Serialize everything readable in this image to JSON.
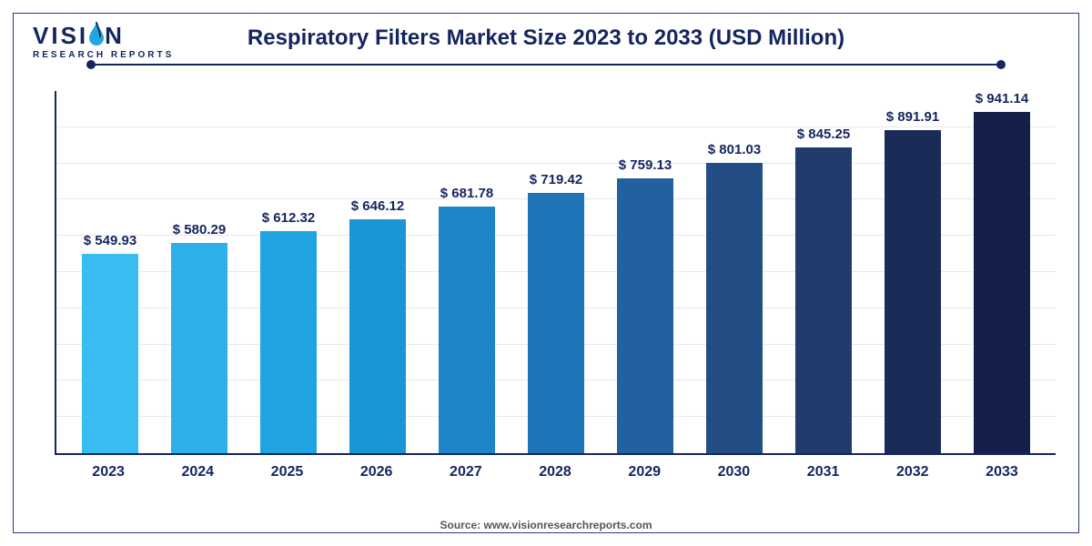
{
  "logo": {
    "line1_pre": "VISI",
    "line1_post": "N",
    "line2": "RESEARCH REPORTS",
    "fontsize_top": 26,
    "fontsize_sub": 10,
    "color_main": "#14255f",
    "color_accent": "#1fa8e0"
  },
  "title": {
    "text": "Respiratory Filters Market Size 2023 to 2033 (USD Million)",
    "fontsize": 24,
    "color": "#14255f"
  },
  "divider": {
    "color": "#14255f"
  },
  "chart": {
    "type": "bar",
    "categories": [
      "2023",
      "2024",
      "2025",
      "2026",
      "2027",
      "2028",
      "2029",
      "2030",
      "2031",
      "2032",
      "2033"
    ],
    "values": [
      549.93,
      580.29,
      612.32,
      646.12,
      681.78,
      719.42,
      759.13,
      801.03,
      845.25,
      891.91,
      941.14
    ],
    "value_labels": [
      "$ 549.93",
      "$ 580.29",
      "$ 612.32",
      "$ 646.12",
      "$ 681.78",
      "$ 719.42",
      "$ 759.13",
      "$ 801.03",
      "$ 845.25",
      "$ 891.91",
      "$ 941.14"
    ],
    "bar_colors": [
      "#37bdf2",
      "#2bb0ea",
      "#1fa3e1",
      "#1a95d6",
      "#1c86c9",
      "#1f74b7",
      "#22619f",
      "#234d85",
      "#203b6c",
      "#1b2b58",
      "#14204a"
    ],
    "ylim": [
      0,
      1000
    ],
    "grid_steps": 9,
    "grid_color": "#e8e8ee",
    "axis_color": "#14255f",
    "bar_width_pct": 64,
    "label_fontsize": 15,
    "xlabel_fontsize": 16,
    "background_color": "#ffffff"
  },
  "source": {
    "text": "Source: www.visionresearchreports.com",
    "fontsize": 12,
    "color": "#555555"
  }
}
